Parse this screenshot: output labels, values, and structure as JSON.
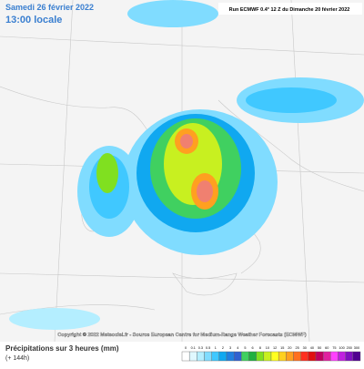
{
  "header": {
    "date": "Samedi 26 février 2022",
    "time": "13:00 locale",
    "run": "Run ECMWF 0.4° 12 Z du Dimanche 20 février 2022"
  },
  "footer": {
    "copyright": "Copyright © 2022 Meteociel.fr - Source European Centre for Medium-Range Weather Forecasts (ECMWF)",
    "title": "Précipitations sur 3 heures (mm)",
    "lead": "(+ 144h)"
  },
  "legend": {
    "labels": [
      "0",
      "0.1",
      "0.3",
      "0.5",
      "1",
      "2",
      "3",
      "4",
      "5",
      "6",
      "8",
      "10",
      "12",
      "15",
      "20",
      "25",
      "30",
      "40",
      "50",
      "60",
      "75",
      "100",
      "200",
      "300"
    ],
    "colors": [
      "#ffffff",
      "#e0f8ff",
      "#b4eeff",
      "#80dcff",
      "#40c8ff",
      "#10a8f0",
      "#2080e0",
      "#3060d0",
      "#40d060",
      "#20b040",
      "#80e020",
      "#c8f020",
      "#ffff20",
      "#ffd020",
      "#ffa020",
      "#ff7020",
      "#ff3020",
      "#e01010",
      "#c00060",
      "#e020a0",
      "#ff40ff",
      "#c020e0",
      "#8010c0",
      "#500090"
    ]
  }
}
